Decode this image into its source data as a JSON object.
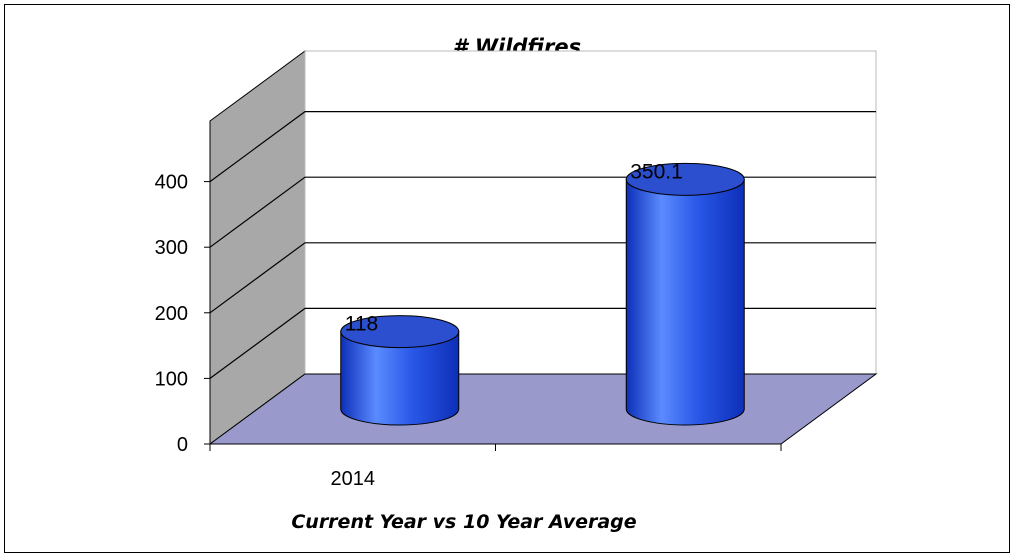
{
  "chart_data": {
    "type": "bar",
    "title": "# Wildfires",
    "xlabel": "Current Year vs 10 Year Average",
    "ylabel": "",
    "categories": [
      "2014",
      ""
    ],
    "values": [
      118,
      350.1
    ],
    "data_labels": [
      "118",
      "350.1"
    ],
    "y_ticks": [
      "0",
      "100",
      "200",
      "300",
      "400"
    ],
    "ylim": [
      0,
      400
    ],
    "grid": true,
    "legend": "none",
    "colors": {
      "bar": "#2a58e8",
      "bar_light": "#5b8bff",
      "bar_dark": "#0d2fb8",
      "bar_top": "#2c4fcf",
      "floor": "#9999cc",
      "side_wall": "#a8a8a8",
      "back_wall": "#ffffff"
    }
  }
}
